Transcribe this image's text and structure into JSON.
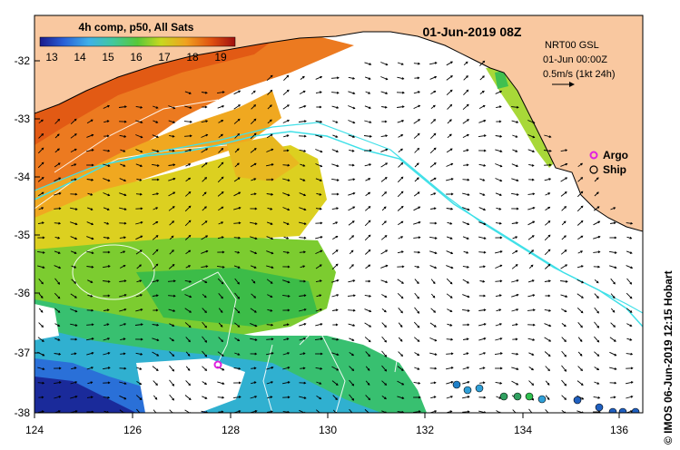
{
  "colorbar": {
    "title": "4h comp, p50, All Sats",
    "ticks": [
      "13",
      "14",
      "15",
      "16",
      "17",
      "18",
      "19"
    ],
    "colors": [
      "#1a1a8c",
      "#2a5fd6",
      "#3fb0e8",
      "#40c8a0",
      "#58c838",
      "#c8d820",
      "#f0a020",
      "#e05010",
      "#a01010"
    ]
  },
  "timestamp": "01-Jun-2019 08Z",
  "current_info": {
    "line1": "NRT00 GSL",
    "line2": "01-Jun 00:00Z",
    "line3": "0.5m/s (1kt 24h)"
  },
  "legend": {
    "argo_label": "Argo",
    "ship_label": "Ship",
    "argo_color": "#e020e0",
    "ship_color": "#000000"
  },
  "y_axis": {
    "ticks": [
      "-32",
      "-33",
      "-34",
      "-35",
      "-36",
      "-37",
      "-38"
    ]
  },
  "x_axis": {
    "ticks": [
      "124",
      "126",
      "128",
      "130",
      "132",
      "134",
      "136"
    ]
  },
  "credit": "© IMOS 06-Jun-2019 12:15 Hobart",
  "colors": {
    "land": "#f9c8a0",
    "cloud": "#ffffff",
    "current_contour": "#40e0e8",
    "isotherm": "#ffffff"
  },
  "ship_observation_colors": [
    "#2060c0",
    "#30a0d8",
    "#30a060",
    "#30c050",
    "#2080c8"
  ]
}
